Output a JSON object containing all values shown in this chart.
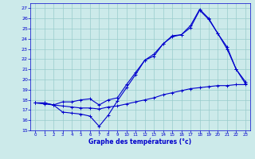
{
  "xlabel": "Graphe des températures (°c)",
  "bg_color": "#cceaea",
  "grid_color": "#99cccc",
  "line_color": "#0000cc",
  "xlim": [
    -0.5,
    23.5
  ],
  "ylim": [
    15,
    27.5
  ],
  "yticks": [
    15,
    16,
    17,
    18,
    19,
    20,
    21,
    22,
    23,
    24,
    25,
    26,
    27
  ],
  "xticks": [
    0,
    1,
    2,
    3,
    4,
    5,
    6,
    7,
    8,
    9,
    10,
    11,
    12,
    13,
    14,
    15,
    16,
    17,
    18,
    19,
    20,
    21,
    22,
    23
  ],
  "line1_x": [
    0,
    1,
    2,
    3,
    4,
    5,
    6,
    7,
    8,
    9,
    10,
    11,
    12,
    13,
    14,
    15,
    16,
    17,
    18,
    19,
    20,
    21,
    22,
    23
  ],
  "line1_y": [
    17.7,
    17.7,
    17.5,
    17.8,
    17.8,
    18.0,
    18.1,
    17.5,
    18.0,
    18.2,
    19.5,
    20.7,
    21.9,
    22.5,
    23.5,
    24.3,
    24.4,
    25.3,
    26.9,
    26.0,
    24.5,
    23.2,
    21.0,
    19.8
  ],
  "line2_x": [
    0,
    1,
    2,
    3,
    4,
    5,
    6,
    7,
    8,
    9,
    10,
    11,
    12,
    13,
    14,
    15,
    16,
    17,
    18,
    19,
    20,
    21,
    22,
    23
  ],
  "line2_y": [
    17.7,
    17.7,
    17.5,
    16.8,
    16.7,
    16.6,
    16.4,
    15.4,
    16.5,
    17.9,
    19.2,
    20.5,
    21.9,
    22.3,
    23.5,
    24.2,
    24.4,
    25.1,
    26.8,
    25.9,
    24.5,
    23.0,
    21.0,
    19.6
  ],
  "line3_x": [
    0,
    1,
    2,
    3,
    4,
    5,
    6,
    7,
    8,
    9,
    10,
    11,
    12,
    13,
    14,
    15,
    16,
    17,
    18,
    19,
    20,
    21,
    22,
    23
  ],
  "line3_y": [
    17.7,
    17.6,
    17.5,
    17.4,
    17.3,
    17.2,
    17.2,
    17.1,
    17.3,
    17.4,
    17.6,
    17.8,
    18.0,
    18.2,
    18.5,
    18.7,
    18.9,
    19.1,
    19.2,
    19.3,
    19.4,
    19.4,
    19.5,
    19.5
  ]
}
